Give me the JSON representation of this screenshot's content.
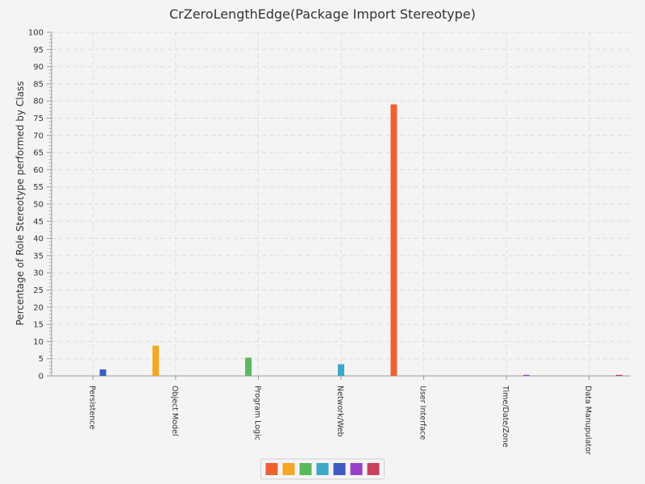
{
  "chart_data": {
    "type": "bar",
    "title": "CrZeroLengthEdge(Package Import Stereotype)",
    "xlabel": "",
    "ylabel": "Percentage of Role Stereotype performed by Class",
    "ylim": [
      0,
      100
    ],
    "ytick_step": 5,
    "grid": true,
    "legend_position": "bottom",
    "categories": [
      "Persistence",
      "Object Model",
      "Program Logic",
      "Network/Web",
      "User Interface",
      "Time/Date/Zone",
      "Data Manupulator"
    ],
    "series": [
      {
        "color": "#f06030",
        "values": [
          0,
          0,
          0,
          0,
          79,
          0,
          0
        ]
      },
      {
        "color": "#f5a623",
        "values": [
          0,
          8.8,
          0,
          0,
          0,
          0,
          0
        ]
      },
      {
        "color": "#5cb85c",
        "values": [
          0,
          0,
          5.3,
          0,
          0,
          0,
          0
        ]
      },
      {
        "color": "#3ea8c8",
        "values": [
          0,
          0,
          0,
          3.4,
          0,
          0,
          0
        ]
      },
      {
        "color": "#3f5bc4",
        "values": [
          1.9,
          0,
          0,
          0,
          0,
          0,
          0
        ]
      },
      {
        "color": "#9b40c9",
        "values": [
          0,
          0,
          0,
          0,
          0,
          0.3,
          0
        ]
      },
      {
        "color": "#c8405a",
        "values": [
          0,
          0,
          0,
          0,
          0,
          0,
          0.3
        ]
      }
    ]
  }
}
